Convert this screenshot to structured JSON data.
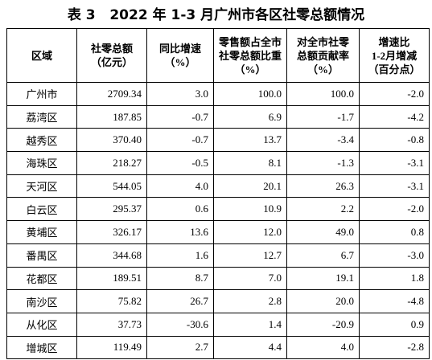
{
  "title": "表 3   2022 年 1-3 月广州市各区社零总额情况",
  "table": {
    "header": [
      [
        "区域"
      ],
      [
        "社零总额",
        "（亿元）"
      ],
      [
        "同比增速",
        "（%）"
      ],
      [
        "零售额占全市",
        "社零总额比重",
        "（%）"
      ],
      [
        "对全市社零",
        "总额贡献率",
        "（%）"
      ],
      [
        "增速比",
        "1-2月增减",
        "（百分点）"
      ]
    ],
    "rows": [
      [
        "广州市",
        "2709.34",
        "3.0",
        "100.0",
        "100.0",
        "-2.0"
      ],
      [
        "荔湾区",
        "187.85",
        "-0.7",
        "6.9",
        "-1.7",
        "-4.2"
      ],
      [
        "越秀区",
        "370.40",
        "-0.7",
        "13.7",
        "-3.4",
        "-0.8"
      ],
      [
        "海珠区",
        "218.27",
        "-0.5",
        "8.1",
        "-1.3",
        "-3.1"
      ],
      [
        "天河区",
        "544.05",
        "4.0",
        "20.1",
        "26.3",
        "-3.1"
      ],
      [
        "白云区",
        "295.37",
        "0.6",
        "10.9",
        "2.2",
        "-2.0"
      ],
      [
        "黄埔区",
        "326.17",
        "13.6",
        "12.0",
        "49.0",
        "0.8"
      ],
      [
        "番禺区",
        "344.68",
        "1.6",
        "12.7",
        "6.7",
        "-3.0"
      ],
      [
        "花都区",
        "189.51",
        "8.7",
        "7.0",
        "19.1",
        "1.8"
      ],
      [
        "南沙区",
        "75.82",
        "26.7",
        "2.8",
        "20.0",
        "-4.8"
      ],
      [
        "从化区",
        "37.73",
        "-30.6",
        "1.4",
        "-20.9",
        "0.9"
      ],
      [
        "增城区",
        "119.49",
        "2.7",
        "4.4",
        "4.0",
        "-2.8"
      ]
    ]
  }
}
